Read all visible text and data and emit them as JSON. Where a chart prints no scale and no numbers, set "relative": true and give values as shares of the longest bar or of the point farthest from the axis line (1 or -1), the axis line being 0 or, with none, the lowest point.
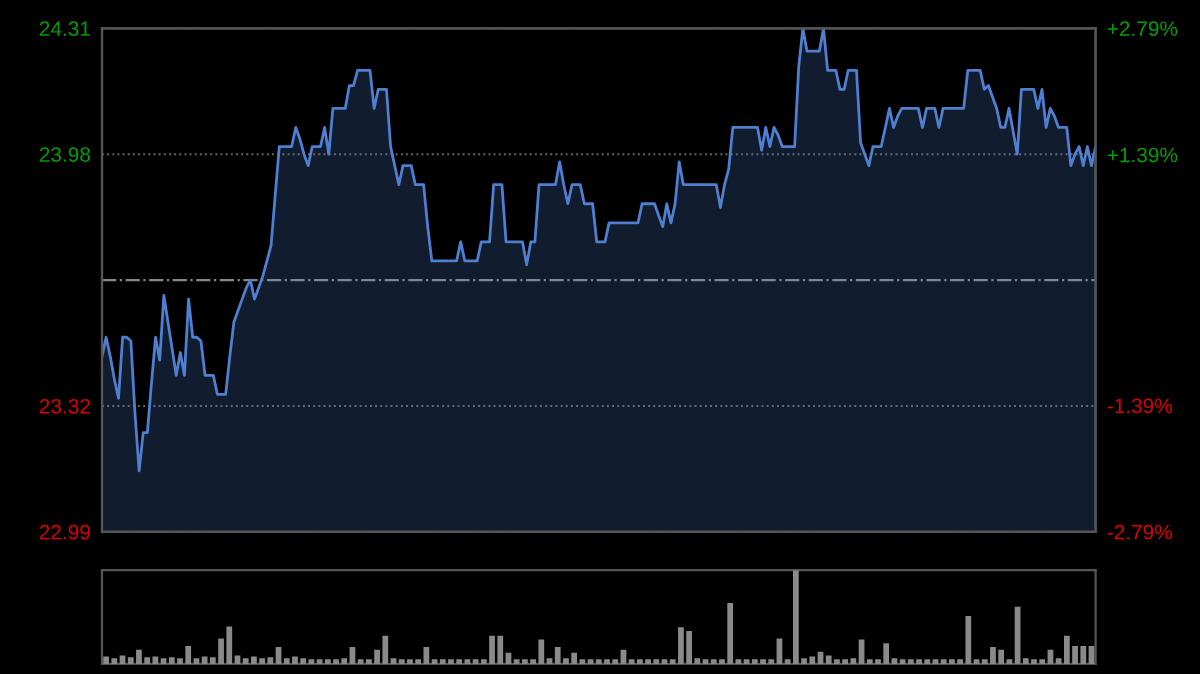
{
  "chart_data": [
    {
      "type": "area",
      "ylim": [
        22.99,
        24.31
      ],
      "yticks": [
        22.99,
        23.32,
        23.98,
        24.31
      ],
      "y2lim": [
        -2.79,
        2.79
      ],
      "y2ticks": [
        {
          "value": -2.79,
          "label": "-2.79%"
        },
        {
          "value": -1.39,
          "label": "-1.39%"
        },
        {
          "value": 1.39,
          "label": "+1.39%"
        },
        {
          "value": 2.79,
          "label": "+2.79%"
        }
      ],
      "grid": "y",
      "tick_labels": "y",
      "ref_lines": [
        {
          "axis": "y",
          "value": 23.65,
          "color": "#888888",
          "line_style": "dashdot"
        }
      ],
      "categories": [
        null,
        null,
        null,
        null,
        null,
        null,
        null,
        null,
        null,
        null,
        null,
        null,
        null,
        null,
        null,
        null,
        null,
        null,
        null,
        null,
        null,
        null,
        null,
        null,
        null,
        null,
        null,
        null,
        null,
        null,
        null,
        null,
        null,
        null,
        null,
        null,
        null,
        null,
        null,
        null,
        null,
        null,
        null,
        null,
        null,
        null,
        null,
        null,
        null,
        null,
        null,
        null,
        null,
        null,
        null,
        null,
        null,
        null,
        null,
        null,
        null,
        null,
        null,
        null,
        null,
        null,
        null,
        null,
        null,
        null,
        null,
        null,
        null,
        null,
        null,
        null,
        null,
        null,
        null,
        null,
        null,
        null,
        null,
        null,
        null,
        null,
        null,
        null,
        null,
        null,
        null,
        null,
        null,
        null,
        null,
        null,
        null,
        null,
        null,
        null,
        null,
        null,
        null,
        null,
        null,
        null,
        null,
        null,
        null,
        null,
        null,
        null,
        null,
        null,
        null,
        null,
        null,
        null,
        null,
        null,
        null,
        null,
        null,
        null,
        null,
        null,
        null,
        null,
        null,
        null,
        null,
        null,
        null,
        null,
        null,
        null,
        null,
        null,
        null,
        null,
        null,
        null,
        null,
        null,
        null,
        null,
        null,
        null,
        null,
        null,
        null,
        null,
        null,
        null,
        null,
        null,
        null,
        null,
        null,
        null,
        null,
        null,
        null,
        null,
        null,
        null,
        null,
        null,
        null,
        null,
        null,
        null,
        null,
        null,
        null,
        null,
        null,
        null,
        null,
        null,
        null,
        null,
        null,
        null,
        null,
        null,
        null,
        null,
        null,
        null,
        null,
        null,
        null,
        null,
        null,
        null,
        null,
        null,
        null,
        null,
        null,
        null,
        null,
        null,
        null,
        null,
        null,
        null,
        null,
        null,
        null,
        null,
        null,
        null,
        null,
        null,
        null,
        null,
        null,
        null,
        null,
        null,
        null,
        null,
        null,
        null,
        null,
        null,
        null,
        null,
        null,
        null,
        null,
        null,
        null,
        null,
        null,
        null,
        null,
        null,
        null,
        null
      ],
      "series": [
        {
          "color": "#4f7fd0",
          "values": [
            23.45,
            23.5,
            23.45,
            23.39,
            23.34,
            23.5,
            23.5,
            23.49,
            23.3,
            23.15,
            23.25,
            23.25,
            23.38,
            23.5,
            23.44,
            23.61,
            23.54,
            23.47,
            23.4,
            23.46,
            23.4,
            23.6,
            23.5,
            23.5,
            23.49,
            23.4,
            23.4,
            23.4,
            23.35,
            23.35,
            23.35,
            23.45,
            23.54,
            23.57,
            23.6,
            23.63,
            23.65,
            23.6,
            23.63,
            23.66,
            23.7,
            23.74,
            23.87,
            24.0,
            24.0,
            24.0,
            24.0,
            24.05,
            24.02,
            23.98,
            23.95,
            24.0,
            24.0,
            24.0,
            24.05,
            23.98,
            24.1,
            24.1,
            24.1,
            24.1,
            24.16,
            24.16,
            24.2,
            24.2,
            24.2,
            24.2,
            24.1,
            24.15,
            24.15,
            24.15,
            24.0,
            23.95,
            23.9,
            23.95,
            23.95,
            23.95,
            23.9,
            23.9,
            23.9,
            23.79,
            23.7,
            23.7,
            23.7,
            23.7,
            23.7,
            23.7,
            23.7,
            23.75,
            23.7,
            23.7,
            23.7,
            23.7,
            23.75,
            23.75,
            23.75,
            23.9,
            23.9,
            23.9,
            23.75,
            23.75,
            23.75,
            23.75,
            23.75,
            23.69,
            23.75,
            23.75,
            23.9,
            23.9,
            23.9,
            23.9,
            23.9,
            23.96,
            23.9,
            23.85,
            23.9,
            23.9,
            23.9,
            23.85,
            23.85,
            23.85,
            23.75,
            23.75,
            23.75,
            23.8,
            23.8,
            23.8,
            23.8,
            23.8,
            23.8,
            23.8,
            23.8,
            23.85,
            23.85,
            23.85,
            23.85,
            23.82,
            23.79,
            23.85,
            23.8,
            23.85,
            23.96,
            23.9,
            23.9,
            23.9,
            23.9,
            23.9,
            23.9,
            23.9,
            23.9,
            23.9,
            23.84,
            23.9,
            23.94,
            24.05,
            24.05,
            24.05,
            24.05,
            24.05,
            24.05,
            24.05,
            23.99,
            24.05,
            24.0,
            24.05,
            24.03,
            24.0,
            24.0,
            24.0,
            24.0,
            24.21,
            24.31,
            24.25,
            24.25,
            24.25,
            24.25,
            24.31,
            24.2,
            24.2,
            24.2,
            24.15,
            24.15,
            24.2,
            24.2,
            24.2,
            24.01,
            23.98,
            23.95,
            24.0,
            24.0,
            24.0,
            24.05,
            24.1,
            24.05,
            24.08,
            24.1,
            24.1,
            24.1,
            24.1,
            24.1,
            24.05,
            24.1,
            24.1,
            24.1,
            24.05,
            24.1,
            24.1,
            24.1,
            24.1,
            24.1,
            24.1,
            24.2,
            24.2,
            24.2,
            24.2,
            24.15,
            24.16,
            24.13,
            24.1,
            24.05,
            24.05,
            24.1,
            24.04,
            23.98,
            24.15,
            24.15,
            24.15,
            24.15,
            24.1,
            24.15,
            24.05,
            24.1,
            24.08,
            24.05,
            24.05,
            24.05,
            23.95,
            23.98,
            24.0,
            23.95,
            24.0,
            23.95,
            24.0
          ]
        }
      ]
    },
    {
      "type": "bar",
      "relative": true,
      "tick_labels": false,
      "categories": [
        null,
        null,
        null,
        null,
        null,
        null,
        null,
        null,
        null,
        null,
        null,
        null,
        null,
        null,
        null,
        null,
        null,
        null,
        null,
        null,
        null,
        null,
        null,
        null,
        null,
        null,
        null,
        null,
        null,
        null,
        null,
        null,
        null,
        null,
        null,
        null,
        null,
        null,
        null,
        null,
        null,
        null,
        null,
        null,
        null,
        null,
        null,
        null,
        null,
        null,
        null,
        null,
        null,
        null,
        null,
        null,
        null,
        null,
        null,
        null,
        null,
        null,
        null,
        null,
        null,
        null,
        null,
        null,
        null,
        null,
        null,
        null,
        null,
        null,
        null,
        null,
        null,
        null,
        null,
        null,
        null,
        null,
        null,
        null,
        null,
        null,
        null,
        null,
        null,
        null,
        null,
        null,
        null,
        null,
        null,
        null,
        null,
        null,
        null,
        null,
        null,
        null,
        null,
        null,
        null,
        null,
        null,
        null,
        null,
        null,
        null,
        null,
        null,
        null,
        null,
        null,
        null,
        null,
        null,
        null,
        null
      ],
      "series": [
        {
          "color": "#8a8a8a",
          "values": [
            0.08,
            0.06,
            0.09,
            0.07,
            0.15,
            0.07,
            0.08,
            0.06,
            0.07,
            0.06,
            0.19,
            0.06,
            0.08,
            0.07,
            0.27,
            0.4,
            0.09,
            0.06,
            0.08,
            0.06,
            0.07,
            0.18,
            0.06,
            0.08,
            0.06,
            0.05,
            0.05,
            0.05,
            0.05,
            0.06,
            0.18,
            0.05,
            0.05,
            0.15,
            0.3,
            0.06,
            0.05,
            0.05,
            0.05,
            0.18,
            0.05,
            0.05,
            0.05,
            0.05,
            0.05,
            0.05,
            0.05,
            0.3,
            0.3,
            0.12,
            0.05,
            0.05,
            0.05,
            0.26,
            0.06,
            0.18,
            0.06,
            0.12,
            0.05,
            0.05,
            0.05,
            0.05,
            0.05,
            0.15,
            0.05,
            0.05,
            0.05,
            0.05,
            0.05,
            0.05,
            0.39,
            0.35,
            0.06,
            0.05,
            0.05,
            0.05,
            0.65,
            0.05,
            0.05,
            0.05,
            0.05,
            0.05,
            0.27,
            0.05,
            1,
            0.06,
            0.08,
            0.13,
            0.09,
            0.05,
            0.05,
            0.06,
            0.26,
            0.05,
            0.05,
            0.22,
            0.06,
            0.05,
            0.05,
            0.05,
            0.05,
            0.05,
            0.05,
            0.05,
            0.05,
            0.51,
            0.05,
            0.05,
            0.18,
            0.15,
            0.05,
            0.61,
            0.06,
            0.05,
            0.05,
            0.15,
            0.06,
            0.3,
            0.19,
            0.19,
            0.19
          ]
        }
      ]
    }
  ]
}
